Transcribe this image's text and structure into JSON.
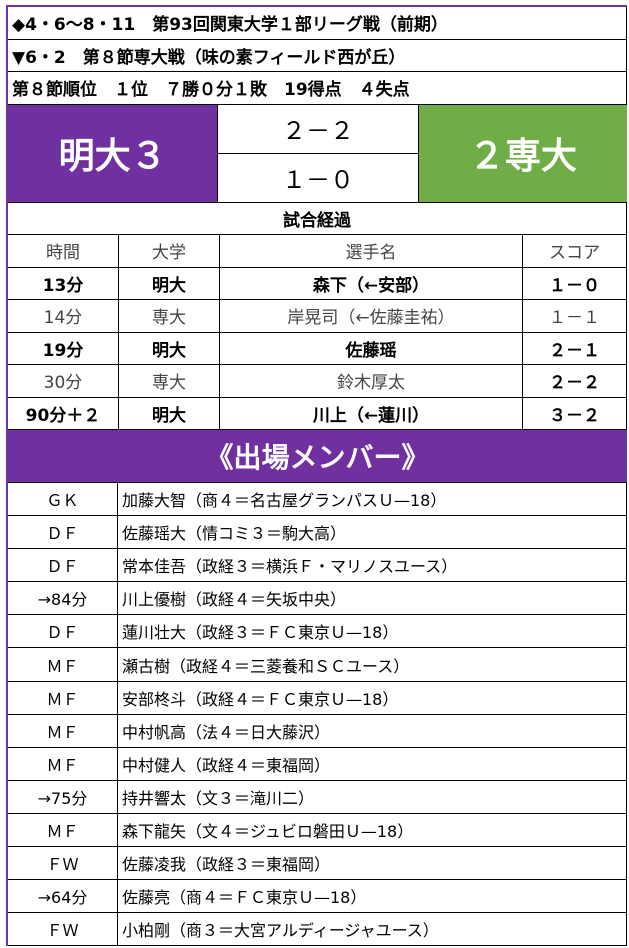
{
  "header": {
    "line1": "◆4・6～8・11　第93回関東大学１部リーグ戦（前期）",
    "line2": "▼6・2　第８節専大戦（味の素フィールド西が丘）",
    "line3": "第８節順位　１位　７勝０分１敗　19得点　４失点"
  },
  "score": {
    "home": "明大３",
    "away": "２専大",
    "first_half": "２－２",
    "second_half": "１－０"
  },
  "colors": {
    "meiji": "#7030a0",
    "senshu": "#70ad47"
  },
  "progress": {
    "title": "試合経過",
    "columns": [
      "時間",
      "大学",
      "選手名",
      "スコア"
    ],
    "rows": [
      {
        "time": "13分",
        "team": "明大",
        "player": "森下（←安部）",
        "score": "１－０"
      },
      {
        "time": "14分",
        "team": "専大",
        "player": "岸晃司（←佐藤圭祐）",
        "score": "１－１"
      },
      {
        "time": "19分",
        "team": "明大",
        "player": "佐藤瑶",
        "score": "２－１"
      },
      {
        "time": "30分",
        "team": "専大",
        "player": "鈴木厚太",
        "score": "２－２"
      },
      {
        "time": "90分＋２",
        "team": "明大",
        "player": "川上（←蓮川）",
        "score": "３－２"
      }
    ]
  },
  "members": {
    "title": "《出場メンバー》",
    "rows": [
      {
        "pos": "ＧＫ",
        "name": "加藤大智（商４＝名古屋グランパスＵ—18）"
      },
      {
        "pos": "ＤＦ",
        "name": "佐藤瑶大（情コミ３＝駒大高）"
      },
      {
        "pos": "ＤＦ",
        "name": "常本佳吾（政経３＝横浜Ｆ・マリノスユース）"
      },
      {
        "pos": "→84分",
        "name": "川上優樹（政経４＝矢坂中央）"
      },
      {
        "pos": "ＤＦ",
        "name": "蓮川壮大（政経３＝ＦＣ東京Ｕ—18）"
      },
      {
        "pos": "ＭＦ",
        "name": "瀬古樹（政経４＝三菱養和ＳＣユース）"
      },
      {
        "pos": "ＭＦ",
        "name": "安部柊斗（政経４＝ＦＣ東京Ｕ—18）"
      },
      {
        "pos": "ＭＦ",
        "name": "中村帆高（法４＝日大藤沢）"
      },
      {
        "pos": "ＭＦ",
        "name": "中村健人（政経４＝東福岡）"
      },
      {
        "pos": "→75分",
        "name": "持井響太（文３＝滝川二）"
      },
      {
        "pos": "ＭＦ",
        "name": "森下龍矢（文４＝ジュビロ磐田Ｕ—18）"
      },
      {
        "pos": "ＦＷ",
        "name": "佐藤凌我（政経３＝東福岡）"
      },
      {
        "pos": "→64分",
        "name": "佐藤亮（商４＝ＦＣ東京Ｕ—18）"
      },
      {
        "pos": "ＦＷ",
        "name": "小柏剛（商３＝大宮アルディージャユース）"
      }
    ]
  }
}
